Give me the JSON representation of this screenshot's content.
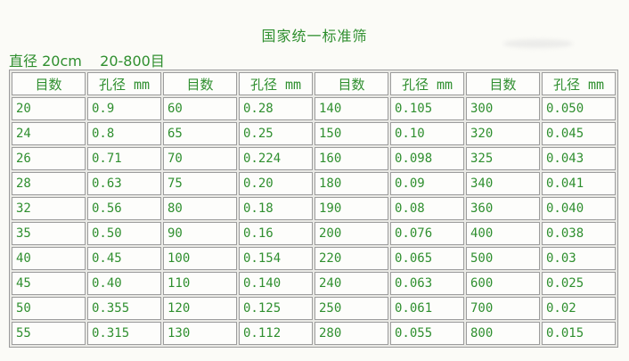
{
  "page": {
    "title": "国家统一标准筛",
    "subtitle": "直径 20cm    20-800目"
  },
  "table": {
    "column_headers": [
      "目数",
      "孔径 mm",
      "目数",
      "孔径 mm",
      "目数",
      "孔径 mm",
      "目数",
      "孔径 mm"
    ],
    "rows": [
      [
        "20",
        "0.9",
        "60",
        "0.28",
        "140",
        "0.105",
        "300",
        "0.050"
      ],
      [
        "24",
        "0.8",
        "65",
        "0.25",
        "150",
        "0.10",
        "320",
        "0.045"
      ],
      [
        "26",
        "0.71",
        "70",
        "0.224",
        "160",
        "0.098",
        "325",
        "0.043"
      ],
      [
        "28",
        "0.63",
        "75",
        "0.20",
        "180",
        "0.09",
        "340",
        "0.041"
      ],
      [
        "32",
        "0.56",
        "80",
        "0.18",
        "190",
        "0.08",
        "360",
        "0.040"
      ],
      [
        "35",
        "0.50",
        "90",
        "0.16",
        "200",
        "0.076",
        "400",
        "0.038"
      ],
      [
        "40",
        "0.45",
        "100",
        "0.154",
        "220",
        "0.065",
        "500",
        "0.03"
      ],
      [
        "45",
        "0.40",
        "110",
        "0.140",
        "240",
        "0.063",
        "600",
        "0.025"
      ],
      [
        "50",
        "0.355",
        "120",
        "0.125",
        "250",
        "0.061",
        "700",
        "0.02"
      ],
      [
        "55",
        "0.315",
        "130",
        "0.112",
        "280",
        "0.055",
        "800",
        "0.015"
      ]
    ]
  },
  "colors": {
    "text_green": "#2f8f2f",
    "border_gray": "#9c9c9c",
    "page_bg": "#fbfbf7",
    "table_gap_bg": "#e9e9e5",
    "cell_bg": "#fdfdfb"
  }
}
